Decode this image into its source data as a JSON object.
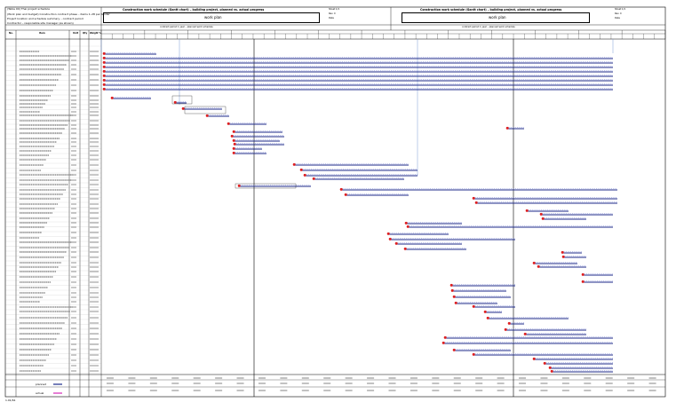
{
  "header": {
    "left_lines": [
      "(Table 00) Thai project schedule",
      "(Work plan and budget) Construction contract phase – items 1–28 per tender",
      "Project location and schedule summary – contract period",
      "Contractor – responsible site manager (as shown)"
    ],
    "title_left": "Construction work schedule (Gantt chart) – building project, planned vs. actual progress",
    "title_right": "Construction work schedule (Gantt chart) – building project, planned vs. actual progress",
    "box_left": "work plan",
    "box_right": "work plan",
    "sheet_left": [
      "Sheet 1/1",
      "Rev. 0",
      "Date",
      "Item"
    ],
    "sheet_right": [
      "Sheet 1/1",
      "Rev. 0",
      "Date",
      "Item"
    ],
    "subheader_left": "contract period 1 year – planned work schedule",
    "subheader_right": "contract period 1 year – planned work schedule"
  },
  "columns": [
    "No.",
    "Item",
    "Unit",
    "Qty",
    "Weight %"
  ],
  "legend": {
    "planned_label": "planned",
    "actual_label": "actual",
    "planned_color": "#1c2a8a",
    "actual_color": "#d629b8",
    "dash_color": "#7a86d6",
    "start_color": "#e02020"
  },
  "footer_code": "1.01/61"
}
